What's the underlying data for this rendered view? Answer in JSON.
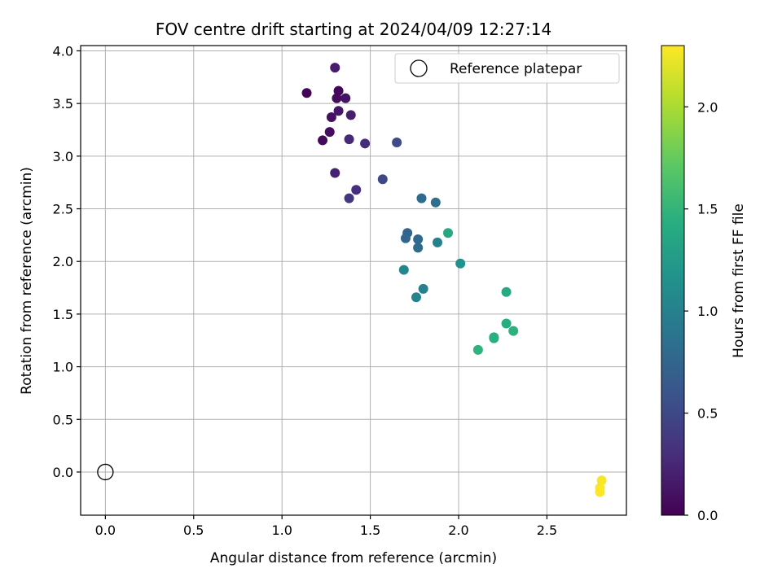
{
  "chart_data": {
    "type": "scatter",
    "title": "FOV centre drift starting at 2024/04/09 12:27:14",
    "xlabel": "Angular distance from reference (arcmin)",
    "ylabel": "Rotation from reference (arcmin)",
    "xlim": [
      -0.14,
      2.95
    ],
    "ylim": [
      -0.41,
      4.05
    ],
    "xticks": [
      0.0,
      0.5,
      1.0,
      1.5,
      2.0,
      2.5
    ],
    "xtick_labels": [
      "0.0",
      "0.5",
      "1.0",
      "1.5",
      "2.0",
      "2.5"
    ],
    "yticks": [
      0.0,
      0.5,
      1.0,
      1.5,
      2.0,
      2.5,
      3.0,
      3.5,
      4.0
    ],
    "ytick_labels": [
      "0.0",
      "0.5",
      "1.0",
      "1.5",
      "2.0",
      "2.5",
      "3.0",
      "3.5",
      "4.0"
    ],
    "grid": true,
    "legend": {
      "placement": "top-right",
      "entries": [
        "Reference platepar"
      ]
    },
    "reference_point": {
      "x": 0.0,
      "y": 0.0
    },
    "colorbar": {
      "label": "Hours from first FF file",
      "range": [
        0.0,
        2.3
      ],
      "ticks": [
        0.0,
        0.5,
        1.0,
        1.5,
        2.0
      ],
      "tick_labels": [
        "0.0",
        "0.5",
        "1.0",
        "1.5",
        "2.0"
      ],
      "colormap": "viridis"
    },
    "points": [
      {
        "x": 1.14,
        "y": 3.6,
        "c": 0.02
      },
      {
        "x": 1.23,
        "y": 3.15,
        "c": 0.05
      },
      {
        "x": 1.27,
        "y": 3.23,
        "c": 0.08
      },
      {
        "x": 1.28,
        "y": 3.37,
        "c": 0.1
      },
      {
        "x": 1.31,
        "y": 3.55,
        "c": 0.06
      },
      {
        "x": 1.32,
        "y": 3.62,
        "c": 0.04
      },
      {
        "x": 1.36,
        "y": 3.55,
        "c": 0.12
      },
      {
        "x": 1.32,
        "y": 3.43,
        "c": 0.14
      },
      {
        "x": 1.3,
        "y": 3.84,
        "c": 0.18
      },
      {
        "x": 1.39,
        "y": 3.39,
        "c": 0.2
      },
      {
        "x": 1.3,
        "y": 2.84,
        "c": 0.22
      },
      {
        "x": 1.38,
        "y": 3.16,
        "c": 0.26
      },
      {
        "x": 1.47,
        "y": 3.12,
        "c": 0.28
      },
      {
        "x": 1.42,
        "y": 2.68,
        "c": 0.3
      },
      {
        "x": 1.38,
        "y": 2.6,
        "c": 0.36
      },
      {
        "x": 1.57,
        "y": 2.78,
        "c": 0.5
      },
      {
        "x": 1.65,
        "y": 3.13,
        "c": 0.52
      },
      {
        "x": 1.79,
        "y": 2.6,
        "c": 0.8
      },
      {
        "x": 1.87,
        "y": 2.56,
        "c": 0.84
      },
      {
        "x": 1.71,
        "y": 2.27,
        "c": 0.74
      },
      {
        "x": 1.7,
        "y": 2.22,
        "c": 0.76
      },
      {
        "x": 1.77,
        "y": 2.21,
        "c": 0.78
      },
      {
        "x": 1.77,
        "y": 2.13,
        "c": 0.8
      },
      {
        "x": 1.88,
        "y": 2.18,
        "c": 1.0
      },
      {
        "x": 1.94,
        "y": 2.27,
        "c": 1.38
      },
      {
        "x": 2.01,
        "y": 1.98,
        "c": 1.16
      },
      {
        "x": 1.69,
        "y": 1.92,
        "c": 1.06
      },
      {
        "x": 1.8,
        "y": 1.74,
        "c": 0.98
      },
      {
        "x": 1.76,
        "y": 1.66,
        "c": 1.02
      },
      {
        "x": 2.27,
        "y": 1.71,
        "c": 1.4
      },
      {
        "x": 2.27,
        "y": 1.41,
        "c": 1.42
      },
      {
        "x": 2.31,
        "y": 1.34,
        "c": 1.46
      },
      {
        "x": 2.2,
        "y": 1.28,
        "c": 1.44
      },
      {
        "x": 2.2,
        "y": 1.27,
        "c": 1.45
      },
      {
        "x": 2.11,
        "y": 1.16,
        "c": 1.48
      },
      {
        "x": 2.81,
        "y": -0.08,
        "c": 2.28
      },
      {
        "x": 2.8,
        "y": -0.15,
        "c": 2.29
      },
      {
        "x": 2.8,
        "y": -0.19,
        "c": 2.3
      }
    ]
  }
}
